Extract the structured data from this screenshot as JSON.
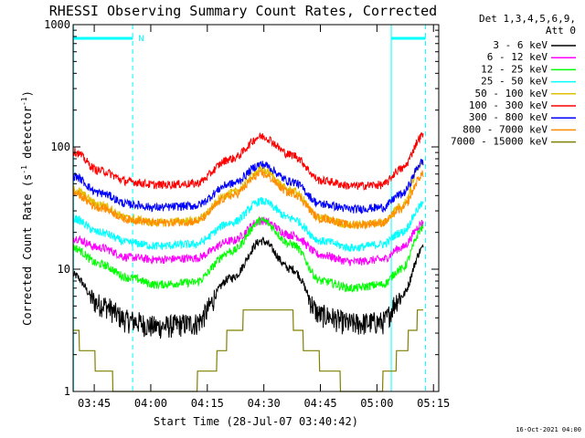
{
  "chart_data": {
    "type": "line",
    "title": "RHESSI Observing Summary Count Rates, Corrected",
    "xlabel": "Start Time (28-Jul-07 03:40:42)",
    "ylabel_main": "Corrected Count Rate (s",
    "ylabel_sup1": "-1",
    "ylabel_mid": " detector",
    "ylabel_sup2": "-1",
    "ylabel_end": ")",
    "y_scale": "log",
    "ylim": [
      1,
      1000
    ],
    "xlim_minutes": [
      -2,
      95
    ],
    "x_ticks": [
      {
        "t": 3.6,
        "label": "03:45"
      },
      {
        "t": 18.6,
        "label": "04:00"
      },
      {
        "t": 33.6,
        "label": "04:15"
      },
      {
        "t": 48.6,
        "label": "04:30"
      },
      {
        "t": 63.6,
        "label": "04:45"
      },
      {
        "t": 78.6,
        "label": "05:00"
      },
      {
        "t": 93.6,
        "label": "05:15"
      }
    ],
    "y_ticks": [
      {
        "v": 1,
        "label": "1"
      },
      {
        "v": 10,
        "label": "10"
      },
      {
        "v": 100,
        "label": "100"
      },
      {
        "v": 1000,
        "label": "1000"
      }
    ],
    "legend_header": [
      "Det 1,3,4,5,6,9,",
      "Att 0"
    ],
    "legend_position": "right",
    "flag_label": "N",
    "timestamp": "16-Oct-2021 04:00",
    "night_intervals_minutes": [
      [
        -1.9,
        13.8
      ],
      [
        82.4,
        91.5
      ]
    ],
    "series": [
      {
        "name": "3 - 6 keV",
        "color": "#000000",
        "t": [
          -2,
          5,
          13,
          20,
          30,
          40,
          48,
          56,
          64,
          72,
          80,
          85,
          91
        ],
        "v": [
          9,
          5.2,
          3.8,
          3.4,
          3.6,
          8.5,
          17,
          10,
          4.2,
          3.6,
          3.7,
          6,
          15
        ]
      },
      {
        "name": "6 - 12 keV",
        "color": "#ff00ff",
        "t": [
          -2,
          5,
          13,
          20,
          30,
          40,
          48,
          56,
          64,
          72,
          80,
          85,
          91
        ],
        "v": [
          18,
          15,
          12.5,
          12,
          12.3,
          17,
          25,
          19,
          13,
          11.5,
          12,
          15,
          24
        ]
      },
      {
        "name": "12 - 25 keV",
        "color": "#00ff00",
        "t": [
          -2,
          5,
          13,
          20,
          30,
          40,
          48,
          56,
          64,
          72,
          80,
          85,
          91
        ],
        "v": [
          15,
          11,
          8.5,
          7.5,
          7.8,
          14,
          25,
          16,
          8,
          7,
          7.5,
          10,
          22
        ]
      },
      {
        "name": "25 - 50 keV",
        "color": "#00ffff",
        "t": [
          -2,
          5,
          13,
          20,
          30,
          40,
          48,
          56,
          64,
          72,
          80,
          85,
          91
        ],
        "v": [
          26,
          20,
          16.5,
          15.5,
          16,
          24,
          36,
          26,
          17,
          15,
          16,
          20,
          34
        ]
      },
      {
        "name": "50 - 100 keV",
        "color": "#e0c000",
        "t": [
          -2,
          5,
          13,
          20,
          30,
          40,
          48,
          56,
          64,
          72,
          80,
          85,
          91
        ],
        "v": [
          45,
          34,
          26,
          24,
          25,
          42,
          65,
          44,
          26,
          23,
          24,
          33,
          78
        ]
      },
      {
        "name": "100 - 300 keV",
        "color": "#ff0000",
        "t": [
          -2,
          5,
          13,
          20,
          30,
          40,
          48,
          56,
          64,
          72,
          80,
          85,
          91
        ],
        "v": [
          92,
          64,
          52,
          49,
          50,
          80,
          122,
          86,
          53,
          48,
          49,
          66,
          125
        ]
      },
      {
        "name": "300 - 800 keV",
        "color": "#0000ff",
        "t": [
          -2,
          5,
          13,
          20,
          30,
          40,
          48,
          56,
          64,
          72,
          80,
          85,
          91
        ],
        "v": [
          58,
          42,
          34,
          32,
          33,
          50,
          72,
          52,
          34,
          31,
          32,
          41,
          76
        ]
      },
      {
        "name": "800 - 7000 keV",
        "color": "#ff8c00",
        "t": [
          -2,
          5,
          13,
          20,
          30,
          40,
          48,
          56,
          64,
          72,
          80,
          85,
          91
        ],
        "v": [
          42,
          32,
          25.5,
          24,
          24.5,
          40,
          60,
          42,
          26,
          23,
          24,
          31,
          60
        ]
      },
      {
        "name": "7000 - 15000 keV",
        "color": "#808000",
        "t": [
          -2,
          2,
          6,
          10,
          14,
          20,
          28,
          34,
          40,
          45,
          50,
          55,
          60,
          65,
          72,
          78,
          82,
          86,
          91
        ],
        "v": [
          3,
          2,
          1.5,
          1.1,
          1,
          1,
          1,
          1.5,
          2.8,
          4.5,
          5.5,
          4.2,
          2.5,
          1.6,
          1,
          1,
          1.4,
          2.5,
          4.5
        ]
      }
    ]
  }
}
